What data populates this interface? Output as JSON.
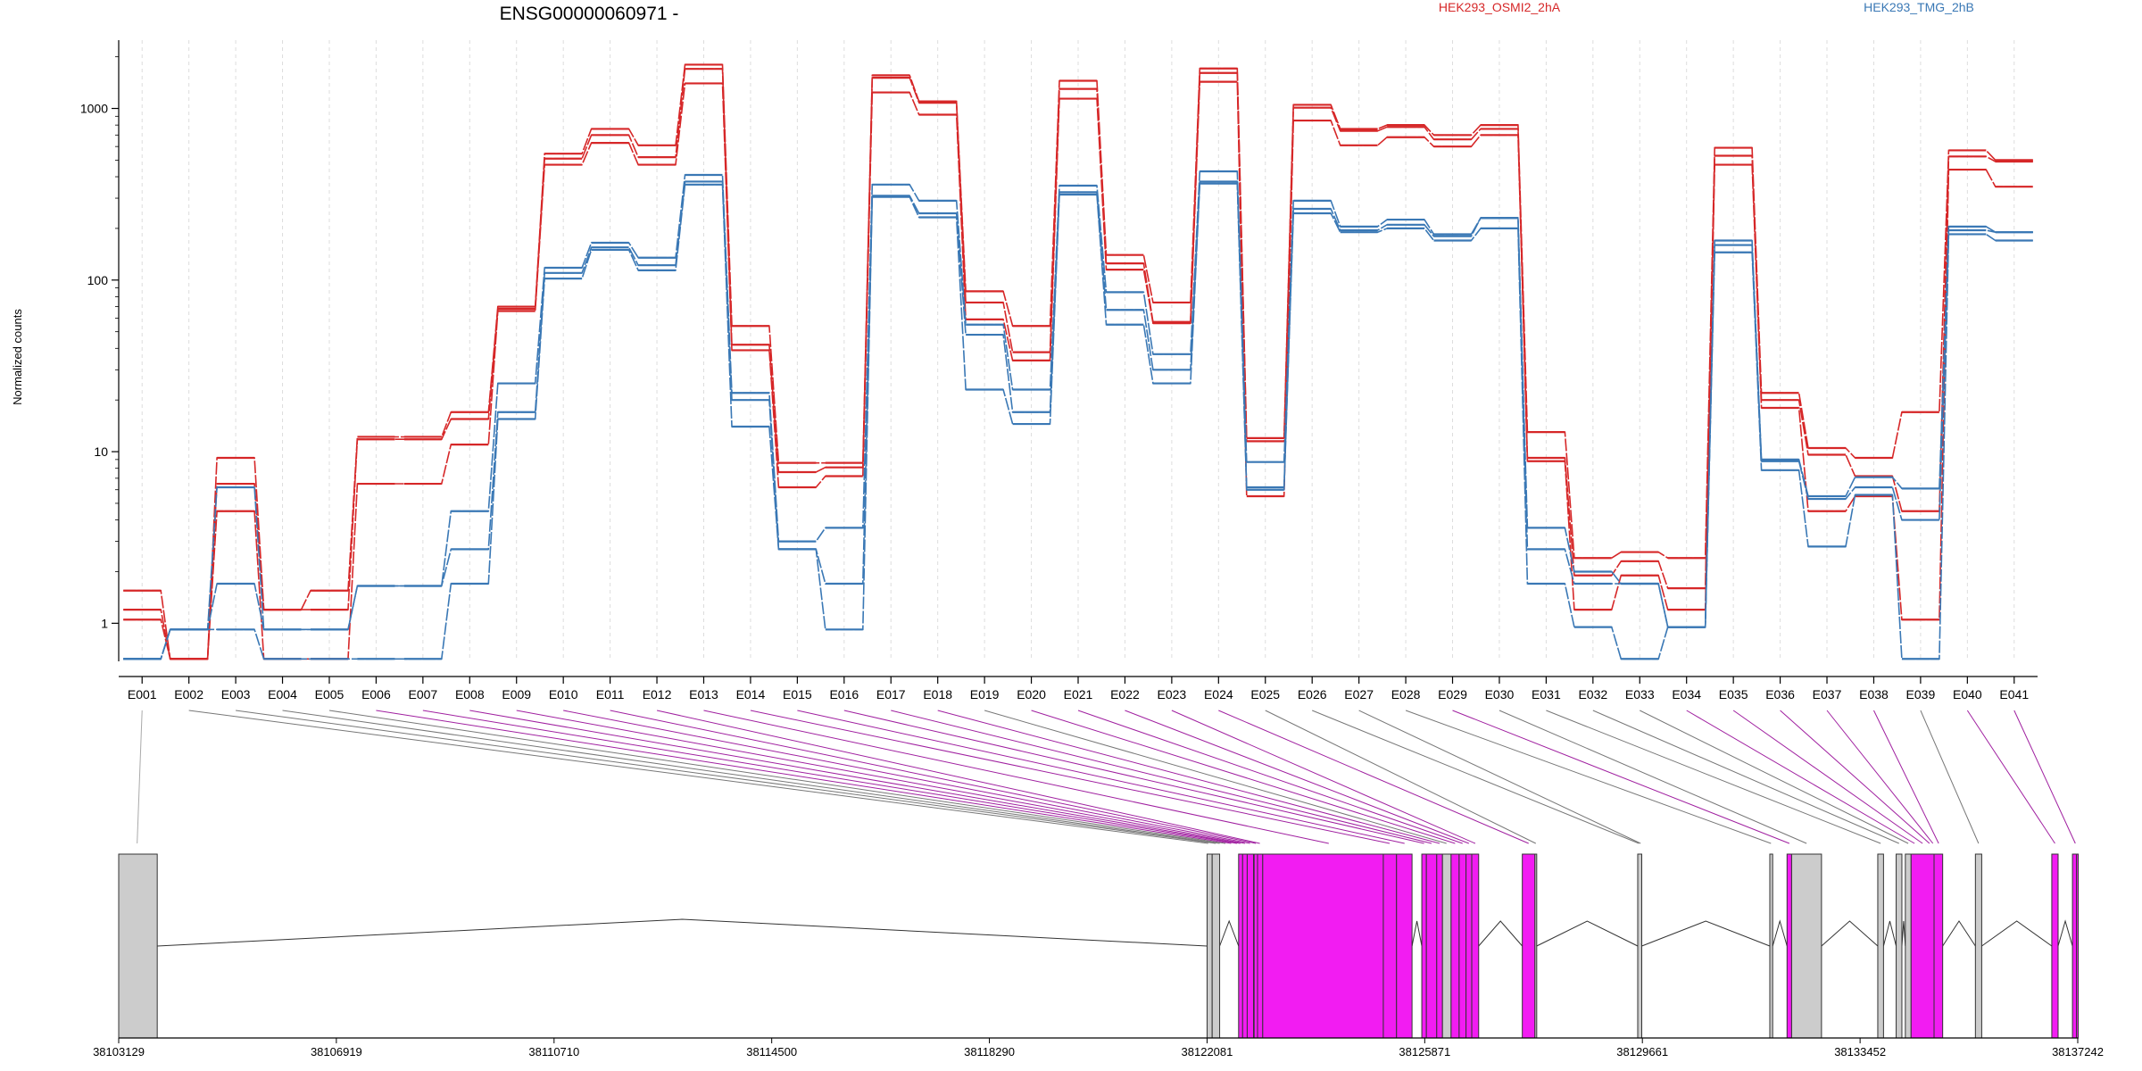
{
  "chart_data": {
    "type": "line",
    "title": "ENSG00000060971 -",
    "ylabel": "Normalized counts",
    "xlabel": "",
    "yscale": "log",
    "ylim": [
      0.6,
      2500
    ],
    "yticks": [
      1,
      10,
      100,
      1000
    ],
    "ytick_labels": [
      "1",
      "10",
      "100",
      "1000"
    ],
    "categories": [
      "E001",
      "E002",
      "E003",
      "E004",
      "E005",
      "E006",
      "E007",
      "E008",
      "E009",
      "E010",
      "E011",
      "E012",
      "E013",
      "E014",
      "E015",
      "E016",
      "E017",
      "E018",
      "E019",
      "E020",
      "E021",
      "E022",
      "E023",
      "E024",
      "E025",
      "E026",
      "E027",
      "E028",
      "E029",
      "E030",
      "E031",
      "E032",
      "E033",
      "E034",
      "E035",
      "E036",
      "E037",
      "E038",
      "E039",
      "E040",
      "E041"
    ],
    "legend": [
      {
        "name": "HEK293_OSMI2_2hA",
        "color": "#d62728"
      },
      {
        "name": "HEK293_TMG_2hB",
        "color": "#3a78b5"
      }
    ],
    "series": [
      {
        "group": "HEK293_OSMI2_2hA",
        "color": "#d62728",
        "values": [
          1.55,
          0.62,
          9.2,
          1.2,
          1.55,
          12.2,
          12.2,
          17,
          70,
          545,
          760,
          610,
          1800,
          54,
          8.6,
          8.6,
          1560,
          1100,
          86,
          54,
          1450,
          140,
          74,
          1710,
          12,
          1050,
          760,
          800,
          700,
          800,
          13,
          2.4,
          2.6,
          2.4,
          590,
          22,
          10.5,
          9.2,
          17,
          570,
          500
        ]
      },
      {
        "group": "HEK293_OSMI2_2hA",
        "color": "#d62728",
        "values": [
          1.2,
          0.62,
          6.5,
          1.2,
          1.2,
          11.8,
          11.8,
          15.5,
          68,
          510,
          700,
          520,
          1700,
          42,
          7.6,
          8.1,
          1510,
          1080,
          74,
          38,
          1300,
          125,
          57,
          1610,
          11.5,
          1010,
          740,
          780,
          660,
          760,
          9.2,
          1.9,
          2.3,
          1.6,
          530,
          20,
          9.6,
          7.2,
          4.5,
          525,
          490
        ]
      },
      {
        "group": "HEK293_OSMI2_2hA",
        "color": "#d62728",
        "values": [
          1.05,
          0.62,
          4.5,
          0.62,
          0.62,
          6.5,
          6.5,
          11,
          66,
          470,
          630,
          470,
          1400,
          39,
          6.2,
          7.2,
          1240,
          920,
          59,
          34,
          1140,
          115,
          56,
          1430,
          5.5,
          850,
          610,
          680,
          600,
          700,
          8.8,
          1.2,
          1.9,
          1.2,
          470,
          18,
          4.5,
          5.5,
          1.05,
          440,
          350
        ]
      },
      {
        "group": "HEK293_TMG_2hB",
        "color": "#3a78b5",
        "values": [
          0.62,
          0.92,
          6.2,
          0.92,
          0.92,
          1.65,
          1.65,
          4.5,
          25,
          118,
          165,
          135,
          410,
          22,
          3.0,
          3.6,
          360,
          290,
          55,
          23,
          355,
          85,
          37,
          430,
          8.7,
          290,
          205,
          225,
          185,
          230,
          3.6,
          2.0,
          1.7,
          0.95,
          170,
          9.0,
          5.5,
          7.1,
          6.1,
          205,
          190
        ]
      },
      {
        "group": "HEK293_TMG_2hB",
        "color": "#3a78b5",
        "values": [
          0.62,
          0.92,
          1.7,
          0.92,
          0.92,
          1.65,
          1.65,
          2.7,
          17,
          110,
          155,
          122,
          375,
          20,
          2.7,
          1.7,
          310,
          245,
          48,
          17,
          325,
          67,
          30,
          375,
          6.2,
          260,
          195,
          210,
          180,
          230,
          2.7,
          1.7,
          1.7,
          0.95,
          160,
          8.8,
          5.3,
          6.2,
          4.0,
          195,
          190
        ]
      },
      {
        "group": "HEK293_TMG_2hB",
        "color": "#3a78b5",
        "values": [
          0.62,
          0.92,
          0.92,
          0.62,
          0.62,
          0.62,
          0.62,
          1.7,
          15.5,
          102,
          150,
          114,
          360,
          14,
          2.7,
          0.92,
          305,
          232,
          23,
          14.5,
          315,
          55,
          25,
          365,
          6.0,
          245,
          190,
          200,
          170,
          200,
          1.7,
          0.95,
          0.62,
          0.95,
          145,
          7.8,
          2.8,
          5.6,
          0.62,
          185,
          170
        ]
      }
    ],
    "exon_track": {
      "xlim": [
        38103129,
        38137242
      ],
      "xticks": [
        38103129,
        38106919,
        38110710,
        38114500,
        38118290,
        38122081,
        38125871,
        38129661,
        38133452,
        38137242
      ],
      "xtick_labels": [
        "38103129",
        "38106919",
        "38110710",
        "38114500",
        "38118290",
        "38122081",
        "38125871",
        "38129661",
        "38133452",
        "38137242"
      ],
      "exons": [
        {
          "start": 38103129,
          "end": 38103800,
          "color": "#cccccc"
        },
        {
          "start": 38122081,
          "end": 38122170,
          "color": "#cccccc"
        },
        {
          "start": 38122170,
          "end": 38122300,
          "color": "#cccccc"
        },
        {
          "start": 38122630,
          "end": 38122700,
          "color": "#f21cf2"
        },
        {
          "start": 38122700,
          "end": 38122780,
          "color": "#f21cf2"
        },
        {
          "start": 38122780,
          "end": 38122890,
          "color": "#f21cf2"
        },
        {
          "start": 38122900,
          "end": 38122960,
          "color": "#f21cf2"
        },
        {
          "start": 38122960,
          "end": 38123050,
          "color": "#f21cf2"
        },
        {
          "start": 38123050,
          "end": 38125150,
          "color": "#f21cf2"
        },
        {
          "start": 38125150,
          "end": 38125380,
          "color": "#f21cf2"
        },
        {
          "start": 38125380,
          "end": 38125650,
          "color": "#f21cf2"
        },
        {
          "start": 38125820,
          "end": 38125900,
          "color": "#f21cf2"
        },
        {
          "start": 38125900,
          "end": 38126080,
          "color": "#f21cf2"
        },
        {
          "start": 38126080,
          "end": 38126180,
          "color": "#f21cf2"
        },
        {
          "start": 38126180,
          "end": 38126330,
          "color": "#cccccc"
        },
        {
          "start": 38126330,
          "end": 38126470,
          "color": "#f21cf2"
        },
        {
          "start": 38126470,
          "end": 38126590,
          "color": "#f21cf2"
        },
        {
          "start": 38126590,
          "end": 38126690,
          "color": "#f21cf2"
        },
        {
          "start": 38126690,
          "end": 38126810,
          "color": "#f21cf2"
        },
        {
          "start": 38127570,
          "end": 38127790,
          "color": "#f21cf2"
        },
        {
          "start": 38127790,
          "end": 38127820,
          "color": "#cccccc"
        },
        {
          "start": 38129580,
          "end": 38129650,
          "color": "#cccccc"
        },
        {
          "start": 38131880,
          "end": 38131930,
          "color": "#cccccc"
        },
        {
          "start": 38132180,
          "end": 38132260,
          "color": "#f21cf2"
        },
        {
          "start": 38132260,
          "end": 38132780,
          "color": "#cccccc"
        },
        {
          "start": 38133760,
          "end": 38133860,
          "color": "#cccccc"
        },
        {
          "start": 38134080,
          "end": 38134180,
          "color": "#cccccc"
        },
        {
          "start": 38134240,
          "end": 38134340,
          "color": "#cccccc"
        },
        {
          "start": 38134340,
          "end": 38134740,
          "color": "#f21cf2"
        },
        {
          "start": 38134740,
          "end": 38134890,
          "color": "#f21cf2"
        },
        {
          "start": 38135460,
          "end": 38135570,
          "color": "#cccccc"
        },
        {
          "start": 38136790,
          "end": 38136900,
          "color": "#f21cf2"
        },
        {
          "start": 38137150,
          "end": 38137220,
          "color": "#f21cf2"
        },
        {
          "start": 38137220,
          "end": 38137242,
          "color": "#f21cf2"
        }
      ],
      "connections": [
        {
          "bin": "E001",
          "pos": 38103450,
          "color": "#aaaaaa"
        },
        {
          "bin": "E002",
          "pos": 38122100,
          "color": "#777777"
        },
        {
          "bin": "E003",
          "pos": 38122230,
          "color": "#777777"
        },
        {
          "bin": "E004",
          "pos": 38122300,
          "color": "#777777"
        },
        {
          "bin": "E005",
          "pos": 38122400,
          "color": "#777777"
        },
        {
          "bin": "E006",
          "pos": 38122500,
          "color": "#a020a0"
        },
        {
          "bin": "E007",
          "pos": 38122600,
          "color": "#a020a0"
        },
        {
          "bin": "E008",
          "pos": 38122660,
          "color": "#a020a0"
        },
        {
          "bin": "E009",
          "pos": 38122740,
          "color": "#a020a0"
        },
        {
          "bin": "E010",
          "pos": 38122830,
          "color": "#a020a0"
        },
        {
          "bin": "E011",
          "pos": 38122930,
          "color": "#a020a0"
        },
        {
          "bin": "E012",
          "pos": 38123000,
          "color": "#a020a0"
        },
        {
          "bin": "E013",
          "pos": 38124200,
          "color": "#a020a0"
        },
        {
          "bin": "E014",
          "pos": 38125260,
          "color": "#a020a0"
        },
        {
          "bin": "E015",
          "pos": 38125520,
          "color": "#a020a0"
        },
        {
          "bin": "E016",
          "pos": 38125860,
          "color": "#a020a0"
        },
        {
          "bin": "E017",
          "pos": 38125990,
          "color": "#a020a0"
        },
        {
          "bin": "E018",
          "pos": 38126130,
          "color": "#a020a0"
        },
        {
          "bin": "E019",
          "pos": 38126250,
          "color": "#777777"
        },
        {
          "bin": "E020",
          "pos": 38126400,
          "color": "#a020a0"
        },
        {
          "bin": "E021",
          "pos": 38126530,
          "color": "#a020a0"
        },
        {
          "bin": "E022",
          "pos": 38126640,
          "color": "#a020a0"
        },
        {
          "bin": "E023",
          "pos": 38126750,
          "color": "#a020a0"
        },
        {
          "bin": "E024",
          "pos": 38127680,
          "color": "#a020a0"
        },
        {
          "bin": "E025",
          "pos": 38127805,
          "color": "#777777"
        },
        {
          "bin": "E026",
          "pos": 38129600,
          "color": "#777777"
        },
        {
          "bin": "E027",
          "pos": 38129630,
          "color": "#777777"
        },
        {
          "bin": "E028",
          "pos": 38131900,
          "color": "#777777"
        },
        {
          "bin": "E029",
          "pos": 38132220,
          "color": "#a020a0"
        },
        {
          "bin": "E030",
          "pos": 38132520,
          "color": "#777777"
        },
        {
          "bin": "E031",
          "pos": 38133810,
          "color": "#777777"
        },
        {
          "bin": "E032",
          "pos": 38134130,
          "color": "#777777"
        },
        {
          "bin": "E033",
          "pos": 38134290,
          "color": "#777777"
        },
        {
          "bin": "E034",
          "pos": 38134400,
          "color": "#a020a0"
        },
        {
          "bin": "E035",
          "pos": 38134540,
          "color": "#a020a0"
        },
        {
          "bin": "E036",
          "pos": 38134660,
          "color": "#a020a0"
        },
        {
          "bin": "E037",
          "pos": 38134720,
          "color": "#a020a0"
        },
        {
          "bin": "E038",
          "pos": 38134820,
          "color": "#a020a0"
        },
        {
          "bin": "E039",
          "pos": 38135515,
          "color": "#777777"
        },
        {
          "bin": "E040",
          "pos": 38136845,
          "color": "#a020a0"
        },
        {
          "bin": "E041",
          "pos": 38137200,
          "color": "#a020a0"
        }
      ]
    }
  }
}
